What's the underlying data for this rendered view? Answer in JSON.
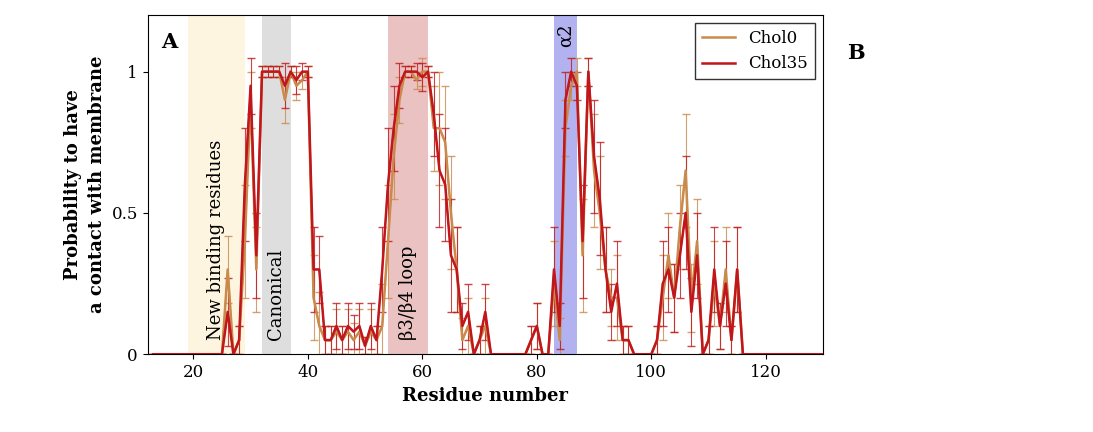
{
  "chart_data": {
    "type": "line",
    "panel_labels": [
      "A",
      "B"
    ],
    "x_label": "Residue number",
    "y_label": "Probability to have\na contact with membrane",
    "x": [
      13,
      14,
      15,
      16,
      17,
      18,
      19,
      20,
      21,
      22,
      23,
      24,
      25,
      26,
      27,
      28,
      29,
      30,
      31,
      32,
      33,
      34,
      35,
      36,
      37,
      38,
      39,
      40,
      41,
      42,
      43,
      44,
      45,
      46,
      47,
      48,
      49,
      50,
      51,
      52,
      53,
      54,
      55,
      56,
      57,
      58,
      59,
      60,
      61,
      62,
      63,
      64,
      65,
      66,
      67,
      68,
      69,
      70,
      71,
      72,
      73,
      74,
      75,
      76,
      77,
      78,
      79,
      80,
      81,
      82,
      83,
      84,
      85,
      86,
      87,
      88,
      89,
      90,
      91,
      92,
      93,
      94,
      95,
      96,
      97,
      98,
      99,
      100,
      101,
      102,
      103,
      104,
      105,
      106,
      107,
      108,
      109,
      110,
      111,
      112,
      113,
      114,
      115,
      116,
      117,
      118,
      119,
      120,
      121,
      122,
      123,
      124,
      125,
      126,
      127,
      128,
      129,
      130
    ],
    "series": [
      {
        "name": "Chol0",
        "color": "#c98a4b",
        "values": [
          0,
          0,
          0,
          0,
          0,
          0,
          0,
          0,
          0,
          0,
          0,
          0,
          0,
          0.3,
          0,
          0.05,
          0.4,
          0.9,
          0.3,
          1,
          1,
          1,
          1,
          0.9,
          1,
          0.95,
          0.97,
          1,
          0.2,
          0.1,
          0.05,
          0.05,
          0.08,
          0.05,
          0.08,
          0.05,
          0.08,
          0.03,
          0.08,
          0.05,
          0.1,
          0.4,
          0.7,
          0.9,
          1,
          1,
          0.97,
          1,
          1,
          0.8,
          0.8,
          0.75,
          0.5,
          0.3,
          0.05,
          0.1,
          0,
          0.05,
          0.1,
          0,
          0,
          0,
          0,
          0,
          0,
          0,
          0.05,
          0.1,
          0,
          0,
          0.25,
          0.05,
          0.8,
          0.95,
          1,
          0.35,
          1,
          0.65,
          0.5,
          0.3,
          0.2,
          0.2,
          0.05,
          0.05,
          0,
          0,
          0,
          0,
          0.05,
          0.2,
          0.35,
          0.2,
          0.45,
          0.65,
          0.2,
          0.4,
          0,
          0.05,
          0.25,
          0.1,
          0.3,
          0.05,
          0.3,
          0,
          0,
          0,
          0,
          0,
          0,
          0,
          0,
          0,
          0,
          0,
          0,
          0,
          0,
          0
        ],
        "errors": [
          0,
          0,
          0,
          0,
          0,
          0,
          0,
          0,
          0,
          0,
          0,
          0,
          0,
          0.12,
          0,
          0.05,
          0.2,
          0.1,
          0.15,
          0.02,
          0.02,
          0.02,
          0.02,
          0.08,
          0.02,
          0.05,
          0.03,
          0.02,
          0.15,
          0.12,
          0.05,
          0.05,
          0.08,
          0.05,
          0.08,
          0.06,
          0.08,
          0.03,
          0.08,
          0.05,
          0.15,
          0.2,
          0.15,
          0.08,
          0.02,
          0.02,
          0.03,
          0.05,
          0.02,
          0.15,
          0.2,
          0.2,
          0.2,
          0.15,
          0.08,
          0.1,
          0,
          0.05,
          0.1,
          0,
          0,
          0,
          0,
          0,
          0,
          0,
          0.05,
          0.08,
          0,
          0,
          0.15,
          0.08,
          0.1,
          0.05,
          0.05,
          0.2,
          0.05,
          0.2,
          0.2,
          0.15,
          0.1,
          0.15,
          0.05,
          0.05,
          0,
          0,
          0,
          0,
          0.05,
          0.15,
          0.15,
          0.12,
          0.15,
          0.2,
          0.12,
          0.15,
          0,
          0.05,
          0.15,
          0.08,
          0.15,
          0.05,
          0.15,
          0,
          0,
          0,
          0,
          0,
          0,
          0,
          0,
          0,
          0,
          0,
          0,
          0,
          0,
          0
        ]
      },
      {
        "name": "Chol35",
        "color": "#c0161c",
        "values": [
          0,
          0,
          0,
          0,
          0,
          0,
          0,
          0,
          0,
          0,
          0,
          0,
          0,
          0.15,
          0,
          0.05,
          0.6,
          0.95,
          0.35,
          1,
          1,
          1,
          1,
          0.95,
          1,
          0.97,
          1,
          1,
          0.3,
          0.3,
          0.05,
          0.05,
          0.1,
          0.05,
          0.1,
          0.08,
          0.1,
          0.03,
          0.1,
          0.05,
          0.3,
          0.6,
          0.8,
          0.95,
          1,
          1,
          1,
          0.98,
          1,
          0.85,
          0.65,
          0.6,
          0.35,
          0.3,
          0.1,
          0.15,
          0,
          0.05,
          0.15,
          0,
          0,
          0,
          0,
          0,
          0,
          0,
          0.05,
          0.1,
          0,
          0,
          0.3,
          0.1,
          0.9,
          1,
          0.95,
          0.4,
          1,
          0.7,
          0.55,
          0.3,
          0.15,
          0.25,
          0.05,
          0.05,
          0,
          0,
          0,
          0,
          0.05,
          0.25,
          0.3,
          0.2,
          0.35,
          0.5,
          0.15,
          0.35,
          0,
          0.05,
          0.3,
          0.1,
          0.25,
          0.05,
          0.3,
          0,
          0,
          0,
          0,
          0,
          0,
          0,
          0,
          0,
          0,
          0,
          0,
          0,
          0,
          0
        ],
        "errors": [
          0,
          0,
          0,
          0,
          0,
          0,
          0,
          0,
          0,
          0,
          0,
          0,
          0,
          0.12,
          0,
          0.05,
          0.2,
          0.1,
          0.15,
          0.02,
          0.02,
          0.02,
          0.02,
          0.08,
          0.02,
          0.05,
          0.03,
          0.02,
          0.15,
          0.12,
          0.05,
          0.05,
          0.08,
          0.05,
          0.08,
          0.06,
          0.08,
          0.03,
          0.08,
          0.05,
          0.15,
          0.2,
          0.15,
          0.08,
          0.02,
          0.02,
          0.03,
          0.05,
          0.02,
          0.15,
          0.2,
          0.2,
          0.2,
          0.15,
          0.08,
          0.1,
          0,
          0.05,
          0.1,
          0,
          0,
          0,
          0,
          0,
          0,
          0,
          0.05,
          0.08,
          0,
          0,
          0.15,
          0.08,
          0.1,
          0.05,
          0.05,
          0.2,
          0.05,
          0.2,
          0.2,
          0.15,
          0.1,
          0.15,
          0.05,
          0.05,
          0,
          0,
          0,
          0,
          0.05,
          0.15,
          0.15,
          0.12,
          0.15,
          0.2,
          0.12,
          0.15,
          0,
          0.05,
          0.15,
          0.08,
          0.15,
          0.05,
          0.15,
          0,
          0,
          0,
          0,
          0,
          0,
          0,
          0,
          0,
          0,
          0,
          0,
          0,
          0,
          0
        ]
      }
    ],
    "regions": [
      {
        "label": "New binding residues",
        "start": 19,
        "end": 29,
        "color": "#fcefcc"
      },
      {
        "label": "Canonical",
        "start": 32,
        "end": 37,
        "color": "#c8c8c8"
      },
      {
        "label": "β3/β4 loop",
        "start": 54,
        "end": 61,
        "color": "#de9a9a"
      },
      {
        "label": "α2",
        "start": 83,
        "end": 87,
        "color": "#7f7fe6"
      }
    ],
    "xlim": [
      12,
      130
    ],
    "ylim": [
      0,
      1.2
    ],
    "xticks": [
      20,
      40,
      60,
      80,
      100,
      120
    ],
    "yticks": [
      0,
      0.5,
      1
    ],
    "legend": "upper right",
    "grid": false
  }
}
